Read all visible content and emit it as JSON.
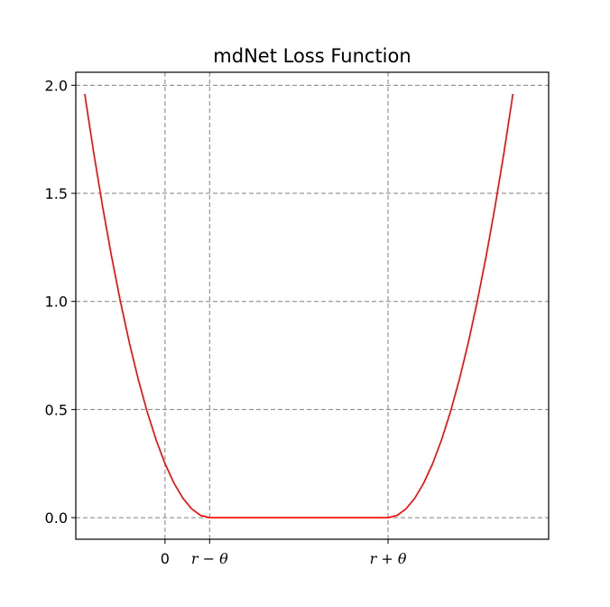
{
  "chart_data": {
    "type": "line",
    "title": "mdNet Loss Function",
    "xlabel": "",
    "ylabel": "",
    "xlim": [
      -1.0,
      4.3
    ],
    "ylim": [
      -0.1,
      2.06
    ],
    "x_ticks": [
      {
        "value": 0,
        "label": "0"
      },
      {
        "value": 0.5,
        "label": "r − θ"
      },
      {
        "value": 2.5,
        "label": "r + θ"
      }
    ],
    "y_ticks": [
      {
        "value": 0.0,
        "label": "0.0"
      },
      {
        "value": 0.5,
        "label": "0.5"
      },
      {
        "value": 1.0,
        "label": "1.0"
      },
      {
        "value": 1.5,
        "label": "1.5"
      },
      {
        "value": 2.0,
        "label": "2.0"
      }
    ],
    "grid": true,
    "grid_style": "dashed",
    "series": [
      {
        "color": "#ff0000",
        "x": [
          -0.9,
          -0.8,
          -0.7,
          -0.6,
          -0.5,
          -0.4,
          -0.3,
          -0.2,
          -0.1,
          0.0,
          0.1,
          0.2,
          0.3,
          0.4,
          0.5,
          0.75,
          1.0,
          1.25,
          1.5,
          1.75,
          2.0,
          2.25,
          2.5,
          2.6,
          2.7,
          2.8,
          2.9,
          3.0,
          3.1,
          3.2,
          3.3,
          3.4,
          3.5,
          3.6,
          3.7,
          3.8,
          3.9
        ],
        "y": [
          1.96,
          1.69,
          1.44,
          1.21,
          1.0,
          0.81,
          0.64,
          0.49,
          0.36,
          0.25,
          0.16,
          0.09,
          0.04,
          0.01,
          0.0,
          0.0,
          0.0,
          0.0,
          0.0,
          0.0,
          0.0,
          0.0,
          0.0,
          0.01,
          0.04,
          0.09,
          0.16,
          0.25,
          0.36,
          0.49,
          0.64,
          0.81,
          1.0,
          1.21,
          1.44,
          1.69,
          1.96
        ]
      }
    ]
  }
}
